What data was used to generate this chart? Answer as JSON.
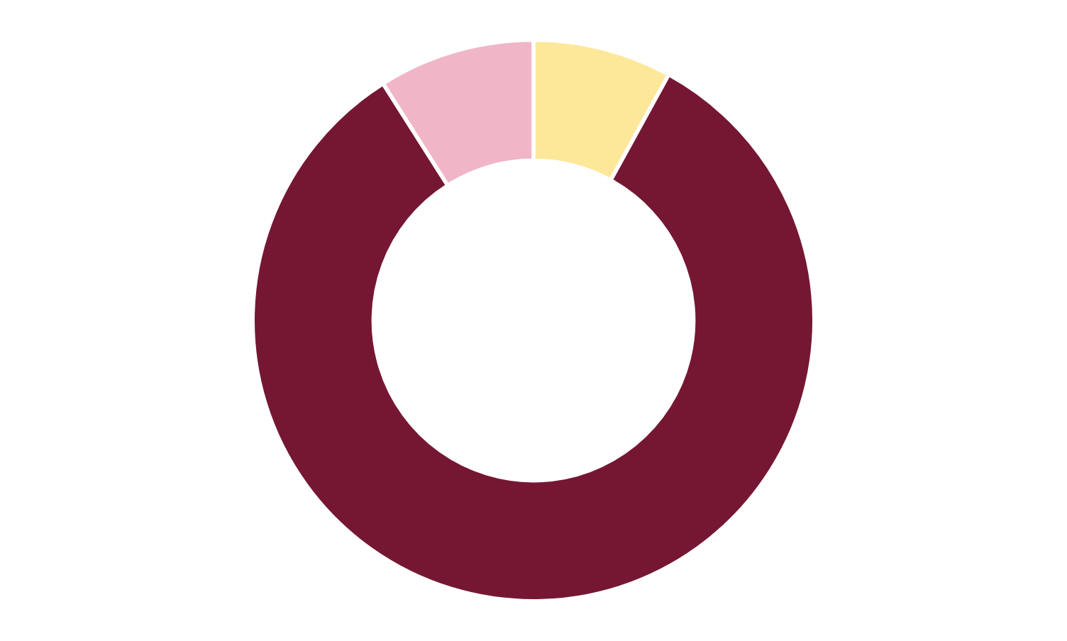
{
  "chart_data": {
    "type": "donut",
    "categories": [
      null,
      null,
      null
    ],
    "values": [
      8,
      83,
      9
    ],
    "colors": [
      "#fde89a",
      "#751733",
      "#f0b6c8"
    ]
  }
}
